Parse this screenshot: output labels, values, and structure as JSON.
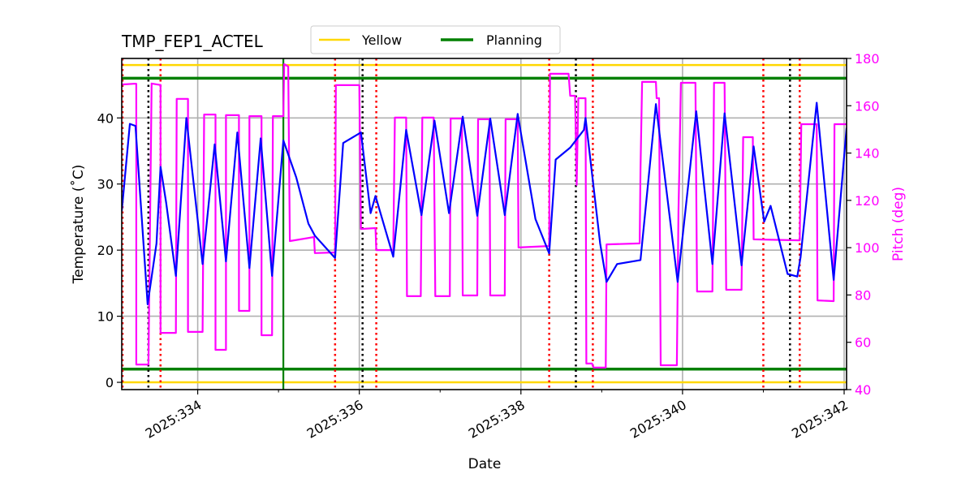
{
  "chart_data": {
    "type": "line",
    "title": "TMP_FEP1_ACTEL",
    "xlabel": "Date",
    "ylabel": "Temperature ($^\\circ$C)",
    "ylabel_display": "Temperature (˚C)",
    "y2label": "Pitch (deg)",
    "xlim": [
      333.06,
      342.03
    ],
    "ylim": [
      -1.1,
      49
    ],
    "y2lim": [
      40,
      180
    ],
    "grid": true,
    "legend_placement": "top-center",
    "x_ticks": [
      334,
      336,
      338,
      340,
      342
    ],
    "x_tick_labels": [
      "2025:334",
      "2025:336",
      "2025:338",
      "2025:340",
      "2025:342"
    ],
    "x_minor_ticks": [
      335,
      337,
      339,
      341
    ],
    "y_ticks": [
      0,
      10,
      20,
      30,
      40
    ],
    "y_tick_labels": [
      "0",
      "10",
      "20",
      "30",
      "40"
    ],
    "y2_ticks": [
      40,
      60,
      80,
      100,
      120,
      140,
      160,
      180
    ],
    "y2_tick_labels": [
      "40",
      "60",
      "80",
      "100",
      "120",
      "140",
      "160",
      "180"
    ],
    "colors": {
      "temperature": "#0000ff",
      "pitch": "#ff00ff",
      "yellow": "#ffd700",
      "planning": "#008000",
      "axis2": "#ff00ff"
    },
    "legend": [
      {
        "label": "Yellow",
        "color": "#ffd700"
      },
      {
        "label": "Planning",
        "color": "#008000"
      }
    ],
    "limit_lines": [
      {
        "kind": "yellow",
        "value": 48
      },
      {
        "kind": "yellow",
        "value": 0
      },
      {
        "kind": "planning",
        "value": 46
      },
      {
        "kind": "planning",
        "value": 2
      }
    ],
    "vertical_lines": {
      "planning_solid": [
        335.06
      ],
      "black_dotted": [
        333.39,
        336.04,
        338.68,
        341.33
      ],
      "red_dotted": [
        333.07,
        333.54,
        335.7,
        336.21,
        338.35,
        338.89,
        341.0,
        341.45
      ]
    },
    "temperature_series": {
      "x": [
        333.06,
        333.16,
        333.23,
        333.38,
        333.49,
        333.54,
        333.61,
        333.73,
        333.86,
        334.06,
        334.21,
        334.35,
        334.49,
        334.64,
        334.78,
        334.92,
        335.06,
        335.22,
        335.37,
        335.45,
        335.7,
        335.8,
        336.02,
        336.14,
        336.2,
        336.42,
        336.58,
        336.77,
        336.93,
        337.11,
        337.28,
        337.46,
        337.62,
        337.8,
        337.96,
        338.18,
        338.35,
        338.43,
        338.61,
        338.78,
        338.8,
        338.98,
        339.06,
        339.19,
        339.48,
        339.67,
        339.94,
        340.17,
        340.37,
        340.52,
        340.73,
        340.88,
        341.01,
        341.09,
        341.3,
        341.42,
        341.46,
        341.66,
        341.87,
        342.03
      ],
      "y": [
        25.9,
        39.1,
        38.8,
        11.8,
        21.0,
        32.6,
        27.1,
        16.1,
        40.0,
        17.9,
        36.0,
        18.3,
        37.8,
        17.3,
        36.9,
        16.1,
        36.6,
        31.0,
        24.0,
        22.2,
        18.8,
        36.2,
        37.8,
        25.6,
        28.2,
        19.0,
        38.2,
        25.3,
        39.6,
        25.6,
        40.2,
        25.2,
        39.9,
        25.3,
        40.6,
        24.7,
        19.5,
        33.7,
        35.5,
        38.2,
        40.0,
        21.0,
        15.2,
        17.9,
        18.5,
        42.1,
        15.2,
        41.0,
        17.9,
        40.7,
        17.7,
        35.7,
        24.3,
        26.7,
        16.4,
        16.0,
        18.9,
        42.3,
        15.5,
        38.5
      ]
    },
    "pitch_series": {
      "x": [
        333.06,
        333.21,
        333.24,
        333.24,
        333.39,
        333.43,
        333.53,
        333.54,
        333.54,
        333.73,
        333.74,
        333.86,
        333.88,
        333.88,
        334.06,
        334.08,
        334.2,
        334.22,
        334.22,
        334.35,
        334.35,
        334.49,
        334.51,
        334.51,
        334.64,
        334.64,
        334.78,
        334.79,
        334.79,
        334.92,
        334.93,
        335.06,
        335.07,
        335.12,
        335.14,
        335.44,
        335.45,
        335.7,
        335.71,
        336.0,
        336.02,
        336.2,
        336.21,
        336.42,
        336.44,
        336.58,
        336.59,
        336.76,
        336.78,
        336.92,
        336.94,
        337.12,
        337.13,
        337.27,
        337.28,
        337.46,
        337.47,
        337.61,
        337.62,
        337.8,
        337.81,
        337.96,
        337.97,
        338.35,
        338.36,
        338.59,
        338.61,
        338.67,
        338.69,
        338.71,
        338.8,
        338.81,
        338.88,
        338.9,
        339.05,
        339.06,
        339.47,
        339.48,
        339.5,
        339.67,
        339.68,
        339.71,
        339.73,
        339.93,
        339.95,
        339.96,
        339.98,
        340.16,
        340.18,
        340.37,
        340.39,
        340.52,
        340.54,
        340.73,
        340.75,
        340.87,
        340.88,
        341.45,
        341.47,
        341.66,
        341.67,
        341.87,
        341.88,
        342.03
      ],
      "y": [
        169.0,
        169.3,
        169.3,
        50.6,
        50.6,
        169.4,
        168.8,
        168.8,
        64.0,
        64.0,
        162.9,
        162.9,
        162.9,
        64.4,
        64.4,
        156.3,
        156.3,
        156.3,
        56.8,
        56.8,
        156.0,
        156.0,
        156.0,
        73.3,
        73.3,
        155.6,
        155.6,
        155.6,
        63.0,
        63.0,
        155.6,
        155.6,
        177.6,
        176.6,
        102.8,
        104.5,
        97.7,
        98.0,
        168.7,
        168.7,
        107.9,
        108.3,
        99.0,
        99.0,
        155.0,
        155.0,
        79.5,
        79.5,
        155.0,
        155.0,
        79.5,
        79.5,
        154.6,
        154.6,
        79.8,
        79.8,
        154.3,
        154.3,
        79.8,
        79.8,
        154.3,
        154.3,
        100.1,
        100.7,
        173.5,
        173.5,
        164.2,
        164.2,
        126.5,
        163.2,
        163.2,
        51.0,
        51.0,
        49.3,
        49.3,
        101.4,
        101.8,
        132.7,
        170.1,
        170.1,
        163.2,
        163.2,
        50.3,
        50.3,
        115.5,
        132.0,
        169.7,
        169.7,
        81.5,
        81.5,
        169.7,
        169.7,
        82.2,
        82.2,
        146.7,
        146.7,
        103.5,
        103.1,
        152.2,
        152.2,
        77.7,
        77.4,
        152.2,
        152.2
      ]
    }
  }
}
